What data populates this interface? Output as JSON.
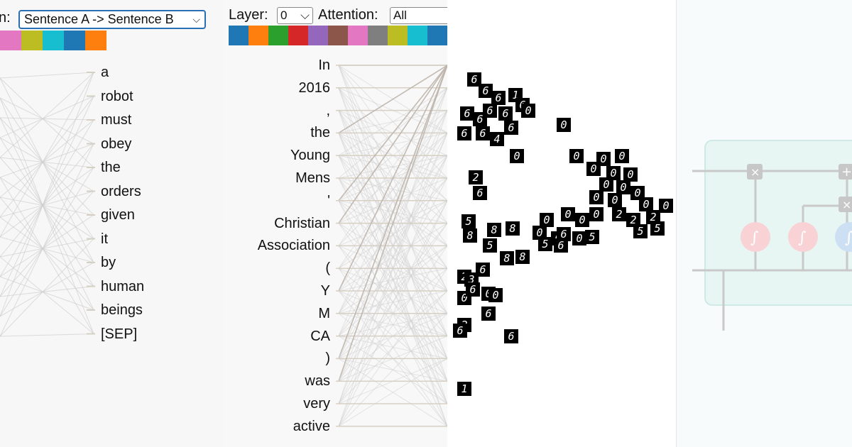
{
  "panel1": {
    "label_fragment": "n:",
    "direction_select": {
      "value": "Sentence A -> Sentence B",
      "chevron_icon": "chevron-down-icon"
    },
    "head_colors": [
      "#e377c2",
      "#bcbd22",
      "#17becf",
      "#1f77b4",
      "#ff7f0e"
    ],
    "tokens": [
      "a",
      "robot",
      "must",
      "obey",
      "the",
      "orders",
      "given",
      "it",
      "by",
      "human",
      "beings",
      "[SEP]"
    ]
  },
  "panel2": {
    "layer_label": "Layer:",
    "layer_select": {
      "value": "0",
      "chevron_icon": "chevron-down-icon"
    },
    "attention_label": "Attention:",
    "attention_select": {
      "value": "All"
    },
    "head_colors": [
      "#1f77b4",
      "#ff7f0e",
      "#2ca02c",
      "#d62728",
      "#9467bd",
      "#8c564b",
      "#e377c2",
      "#7f7f7f",
      "#bcbd22",
      "#17becf",
      "#1f77b4"
    ],
    "tokens": [
      "In",
      "2016",
      ",",
      "the",
      "Young",
      "Mens",
      "'",
      "Christian",
      "Association",
      "(",
      "Y",
      "M",
      "CA",
      ")",
      "was",
      "very",
      "active"
    ]
  },
  "panel3": {
    "digits": [
      "6",
      "6",
      "6",
      "1",
      "6",
      "6",
      "6",
      "6",
      "0",
      "6",
      "6",
      "4",
      "0",
      "6",
      "6",
      "2",
      "6",
      "0",
      "0",
      "0",
      "0",
      "0",
      "0",
      "0",
      "0",
      "0",
      "0",
      "0",
      "0",
      "0",
      "0",
      "2",
      "2",
      "2",
      "5",
      "5",
      "0",
      "0",
      "0",
      "0",
      "0",
      "0",
      "6",
      "0",
      "5",
      "5",
      "6",
      "8",
      "8",
      "5",
      "5",
      "8",
      "8",
      "8",
      "2",
      "3",
      "0",
      "0",
      "0",
      "2"
    ]
  },
  "panel4": {
    "multiply_symbol": "×",
    "add_symbol": "+",
    "sigmoid_symbol": "∫"
  }
}
